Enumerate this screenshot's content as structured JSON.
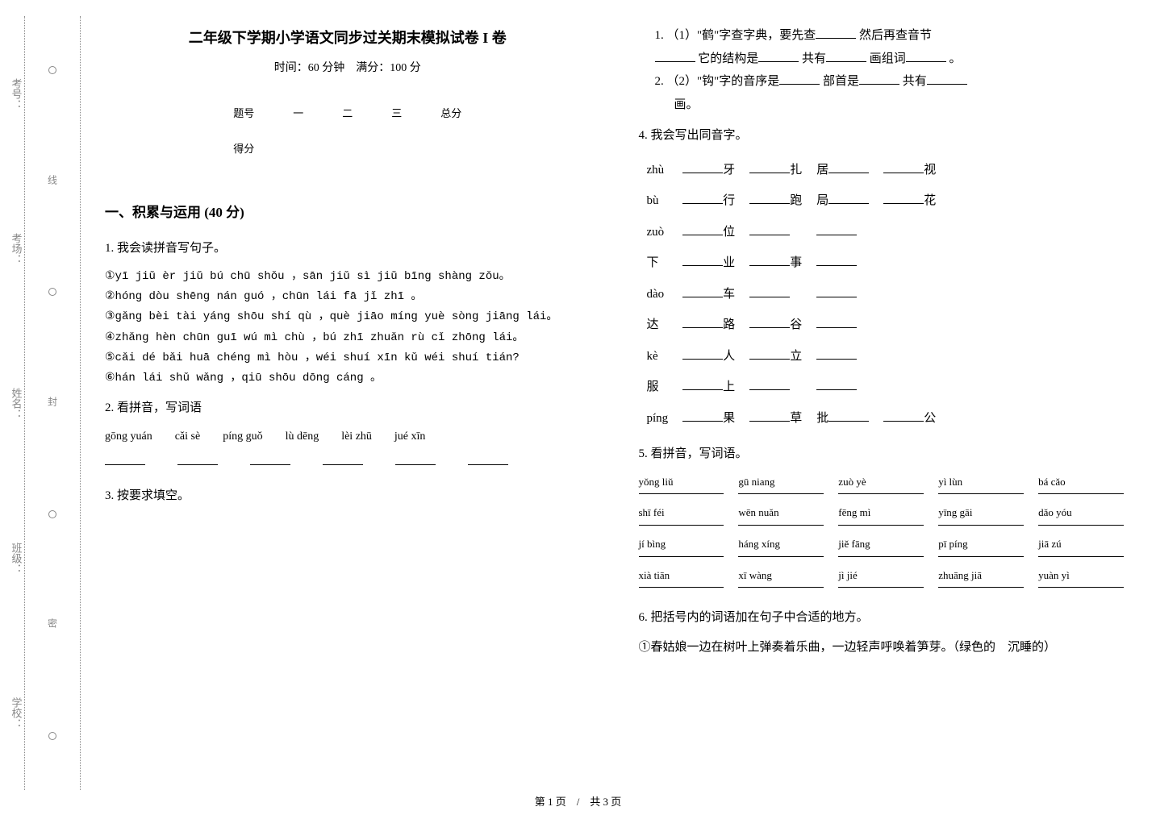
{
  "binding": {
    "labels": [
      "考号：",
      "考场：",
      "姓名：",
      "班级：",
      "学校："
    ],
    "cut": "线",
    "seal": "封",
    "glue": "密"
  },
  "header": {
    "title": "二年级下学期小学语文同步过关期末模拟试卷 I 卷",
    "subtitle": "时间：60 分钟　满分：100 分"
  },
  "score_table": {
    "row1": [
      "题号",
      "一",
      "二",
      "三",
      "总分"
    ],
    "row2": [
      "得分",
      "",
      "",
      "",
      ""
    ]
  },
  "section1": {
    "head": "一、积累与运用 (40 分)"
  },
  "q1": {
    "title": "1. 我会读拼音写句子。",
    "l1": "①yī jiǔ èr jiǔ bú chū shǒu ，sān jiǔ sì jiǔ bīng shàng zǒu。",
    "l2": "②hóng dòu shēng nán guó ，chūn lái fā jǐ zhī 。",
    "l3": "③gǎng bèi tài yáng shōu shí qù ，què jiāo míng yuè sòng jiāng lái。",
    "l4": "④zhǎng hèn chūn guī wú mì chù ，bú zhī zhuǎn rù cǐ zhōng lái。",
    "l5": "⑤cǎi dé bǎi huā chéng mì hòu ，wéi shuí xīn kǔ wéi shuí tián?",
    "l6": "⑥hán lái shǔ wǎng ，qiū shōu dōng cáng 。"
  },
  "q2": {
    "title": "2. 看拼音，写词语",
    "items": [
      "gōng yuán",
      "cǎi sè",
      "píng guǒ",
      "lù dēng",
      "lèi zhū",
      "jué xīn"
    ]
  },
  "q3": {
    "title": "3. 按要求填空。",
    "sub1_a": "1. （1）\"鹤\"字查字典，要先查",
    "sub1_b": "然后再查音节",
    "sub1_c": "它的结构是",
    "sub1_d": "共有",
    "sub1_e": "画组词",
    "sub1_f": "。",
    "sub2_a": "2. （2）\"钩\"字的音序是",
    "sub2_b": "部首是",
    "sub2_c": "共有",
    "sub2_d": "画。"
  },
  "q4": {
    "title": "4. 我会写出同音字。",
    "rows": [
      {
        "py": "zhù",
        "a": "牙",
        "b": "扎",
        "c": "居",
        "d": "视"
      },
      {
        "py": "bù",
        "a": "行",
        "b": "跑",
        "c": "局",
        "d": "花"
      },
      {
        "py": "zuò",
        "a": "位",
        "b": "",
        "c": "",
        "d": ""
      },
      {
        "py": "下",
        "a": "业",
        "b": "事",
        "c": "",
        "d": ""
      },
      {
        "py": "dào",
        "a": "车",
        "b": "",
        "c": "",
        "d": ""
      },
      {
        "py": "达",
        "a": "路",
        "b": "谷",
        "c": "",
        "d": ""
      },
      {
        "py": "kè",
        "a": "人",
        "b": "立",
        "c": "",
        "d": ""
      },
      {
        "py": "服",
        "a": "上",
        "b": "",
        "c": "",
        "d": ""
      },
      {
        "py": "píng",
        "a": "果",
        "b": "草",
        "c": "批",
        "d": "公"
      }
    ]
  },
  "q5": {
    "title": "5. 看拼音，写词语。",
    "items": [
      "yǒng liǔ",
      "gū niang",
      "zuò yè",
      "yì lùn",
      "bá cǎo",
      "shī féi",
      "wēn nuǎn",
      "fēng mì",
      "yīng gāi",
      "dǎo yóu",
      "jí bìng",
      "háng xíng",
      "jiě fāng",
      "pī píng",
      "jiā zú",
      "xià tiān",
      "xī wàng",
      "jì jié",
      "zhuāng jiā",
      "yuàn yì"
    ]
  },
  "q6": {
    "title": "6. 把括号内的词语加在句子中合适的地方。",
    "line": "①春姑娘一边在树叶上弹奏着乐曲，一边轻声呼唤着笋芽。（绿色的　沉睡的）"
  },
  "footer": "第 1 页　/　共 3 页"
}
